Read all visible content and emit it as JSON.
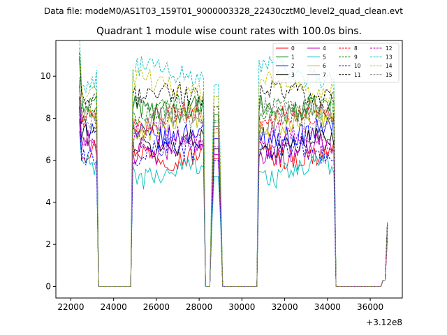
{
  "figure": {
    "suptitle": "Data file: modeM0/AS1T03_159T01_9000003328_22430cztM0_level2_quad_clean.evt"
  },
  "chart_data": {
    "type": "line",
    "title": "Quadrant 1 module wise count rates with 100.0s bins.",
    "xlabel": "",
    "ylabel": "",
    "x_offset_label": "+3.12e8",
    "xlim": [
      21300,
      37500
    ],
    "ylim": [
      -0.55,
      11.7
    ],
    "grid": false,
    "legend_position": "top-right",
    "x_ticks": [
      22000,
      24000,
      26000,
      28000,
      30000,
      32000,
      34000,
      36000
    ],
    "x_tick_labels": [
      "22000",
      "24000",
      "26000",
      "28000",
      "30000",
      "32000",
      "34000",
      "36000"
    ],
    "y_ticks": [
      0,
      2,
      4,
      6,
      8,
      10
    ],
    "y_tick_labels": [
      "0",
      "2",
      "4",
      "6",
      "8",
      "10"
    ],
    "segments": [
      {
        "start": 22400,
        "end": 23200
      },
      {
        "start": 24900,
        "end": 28200
      },
      {
        "start": 28600,
        "end": 29000
      },
      {
        "start": 30800,
        "end": 34300
      },
      {
        "start": 36600,
        "end": 36800
      }
    ],
    "gap_value": 0,
    "series": [
      {
        "name": "0",
        "color": "#ff0000",
        "dash": "solid",
        "level": 6.4
      },
      {
        "name": "1",
        "color": "#008000",
        "dash": "solid",
        "level": 8.6
      },
      {
        "name": "2",
        "color": "#0000ff",
        "dash": "solid",
        "level": 7.4
      },
      {
        "name": "3",
        "color": "#000000",
        "dash": "solid",
        "level": 6.9
      },
      {
        "name": "4",
        "color": "#bf00bf",
        "dash": "solid",
        "level": 6.6
      },
      {
        "name": "5",
        "color": "#00bfbf",
        "dash": "solid",
        "level": 5.5
      },
      {
        "name": "6",
        "color": "#bfbf00",
        "dash": "solid",
        "level": 7.7
      },
      {
        "name": "7",
        "color": "#808080",
        "dash": "solid",
        "level": 8.0
      },
      {
        "name": "8",
        "color": "#ff0000",
        "dash": "dashed",
        "level": 7.9
      },
      {
        "name": "9",
        "color": "#008000",
        "dash": "dashed",
        "level": 8.3
      },
      {
        "name": "10",
        "color": "#0000ff",
        "dash": "dashed",
        "level": 6.3
      },
      {
        "name": "11",
        "color": "#000000",
        "dash": "dashed",
        "level": 9.0
      },
      {
        "name": "12",
        "color": "#bf00bf",
        "dash": "dashed",
        "level": 7.0
      },
      {
        "name": "13",
        "color": "#00bfbf",
        "dash": "dashed",
        "level": 10.1
      },
      {
        "name": "14",
        "color": "#bfbf00",
        "dash": "dashed",
        "level": 9.5
      },
      {
        "name": "15",
        "color": "#808080",
        "dash": "dashed",
        "level": 8.2
      }
    ]
  }
}
